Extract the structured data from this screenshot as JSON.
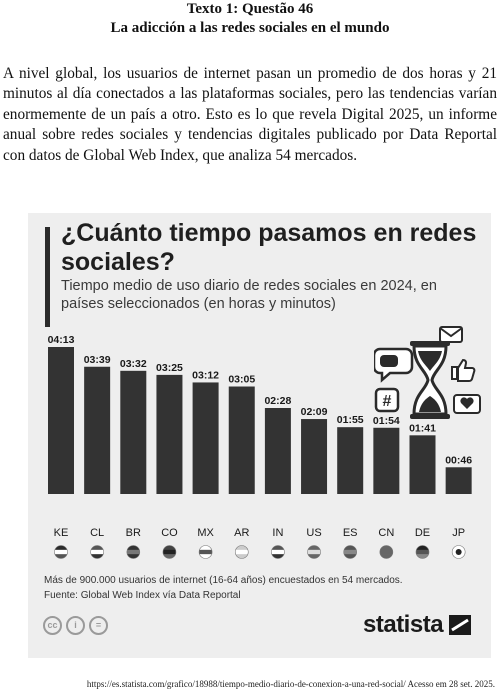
{
  "header": {
    "line1": "Texto 1: Questão 46",
    "line2": "La adicción a las redes sociales en el mundo"
  },
  "paragraph": "A nivel global, los usuarios de internet pasan un promedio de dos horas y 21 minutos al día conectados a las plataformas sociales, pero las tendencias varían enormemente de un país a otro. Esto es lo que revela Digital 2025, un informe anual sobre redes sociales y tendencias digitales publicado por Data Reportal con datos de Global Web Index, que analiza 54 mercados.",
  "chart": {
    "title": "¿Cuánto tiempo pasamos en redes sociales?",
    "subtitle": "Tiempo medio de uso diario de redes sociales en 2024, en países seleccionados (en horas y minutos)",
    "note": "Más de 900.000 usuarios de internet (16-64 años) encuestados en 54 mercados.",
    "source": "Fuente: Global Web Index vía Data Reportal",
    "brand": "statista"
  },
  "chart_data": {
    "type": "bar",
    "title": "¿Cuánto tiempo pasamos en redes sociales?",
    "subtitle": "Tiempo medio de uso diario de redes sociales en 2024, en países seleccionados (en horas y minutos)",
    "categories": [
      "KE",
      "CL",
      "BR",
      "CO",
      "MX",
      "AR",
      "IN",
      "US",
      "ES",
      "CN",
      "DE",
      "JP"
    ],
    "labels": [
      "04:13",
      "03:39",
      "03:32",
      "03:25",
      "03:12",
      "03:05",
      "02:28",
      "02:09",
      "01:55",
      "01:54",
      "01:41",
      "00:46"
    ],
    "values_minutes": [
      253,
      219,
      212,
      205,
      192,
      185,
      148,
      129,
      115,
      114,
      101,
      46
    ],
    "ylim": [
      0,
      253
    ],
    "grid": false,
    "legend": "none",
    "bar_color": "#333333"
  },
  "footer": {
    "url": "https://es.statista.com/grafico/18988/tiempo-medio-diario-de-conexion-a-una-red-social/ Acesso em 28 set. 2025."
  },
  "icons": [
    "hourglass-icon",
    "hashtag-icon",
    "chat-icon",
    "email-icon",
    "thumbs-up-icon",
    "heart-icon",
    "creative-commons-icon",
    "attribution-icon",
    "no-derivatives-icon",
    "statista-logo-icon"
  ]
}
